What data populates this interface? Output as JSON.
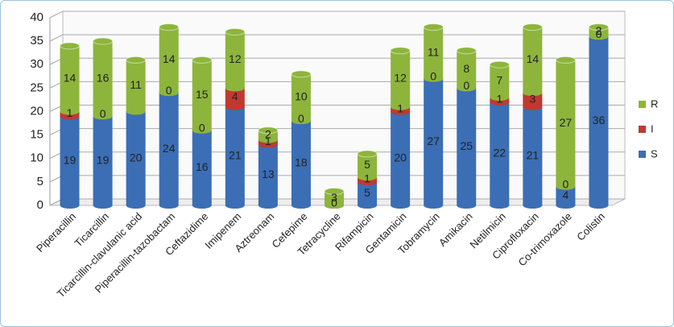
{
  "chart_data": {
    "type": "bar3d_stacked",
    "categories": [
      "Piperacillin",
      "Ticarcillin",
      "Ticarcillin-clavulanic acid",
      "Piperacillin-tazobactam",
      "Ceftazidime",
      "Imipenem",
      "Aztreonam",
      "Cefepime",
      "Tetracycline",
      "Rifampicin",
      "Gentamicin",
      "Tobramycin",
      "Amikacin",
      "Netilmicin",
      "Ciprofloxacin",
      "Co-trimoxazole",
      "Colistin"
    ],
    "series": [
      {
        "name": "S",
        "color": "#3b6eb5",
        "values": [
          19,
          19,
          20,
          24,
          16,
          21,
          13,
          18,
          0,
          5,
          20,
          27,
          25,
          22,
          21,
          4,
          36
        ],
        "value_labels": [
          "19",
          "19",
          "20",
          "24",
          "16",
          "21",
          "13",
          "18",
          null,
          "5",
          "20",
          "27",
          "25",
          "22",
          "21",
          "4",
          "36"
        ]
      },
      {
        "name": "I",
        "color": "#c0392f",
        "values": [
          1,
          0,
          0,
          0,
          0,
          4,
          1,
          0,
          0,
          1,
          1,
          0,
          0,
          1,
          3,
          0,
          0
        ],
        "value_labels": [
          "1",
          "0",
          null,
          "0",
          "0",
          "4",
          "1",
          "0",
          "0",
          "1",
          "1",
          "0",
          "0",
          "1",
          "3",
          "0",
          "0"
        ]
      },
      {
        "name": "R",
        "color": "#8db53c",
        "values": [
          14,
          16,
          11,
          14,
          15,
          12,
          2,
          10,
          3,
          5,
          12,
          11,
          8,
          7,
          14,
          27,
          2
        ],
        "value_labels": [
          "14",
          "16",
          "11",
          "14",
          "15",
          "12",
          "2",
          "10",
          "3",
          "5",
          "12",
          "11",
          "8",
          "7",
          "14",
          "27",
          "2"
        ]
      }
    ],
    "ylim": [
      0,
      40
    ],
    "yticks": [
      0,
      5,
      10,
      15,
      20,
      25,
      30,
      35,
      40
    ],
    "grid": true,
    "legend": "right"
  }
}
